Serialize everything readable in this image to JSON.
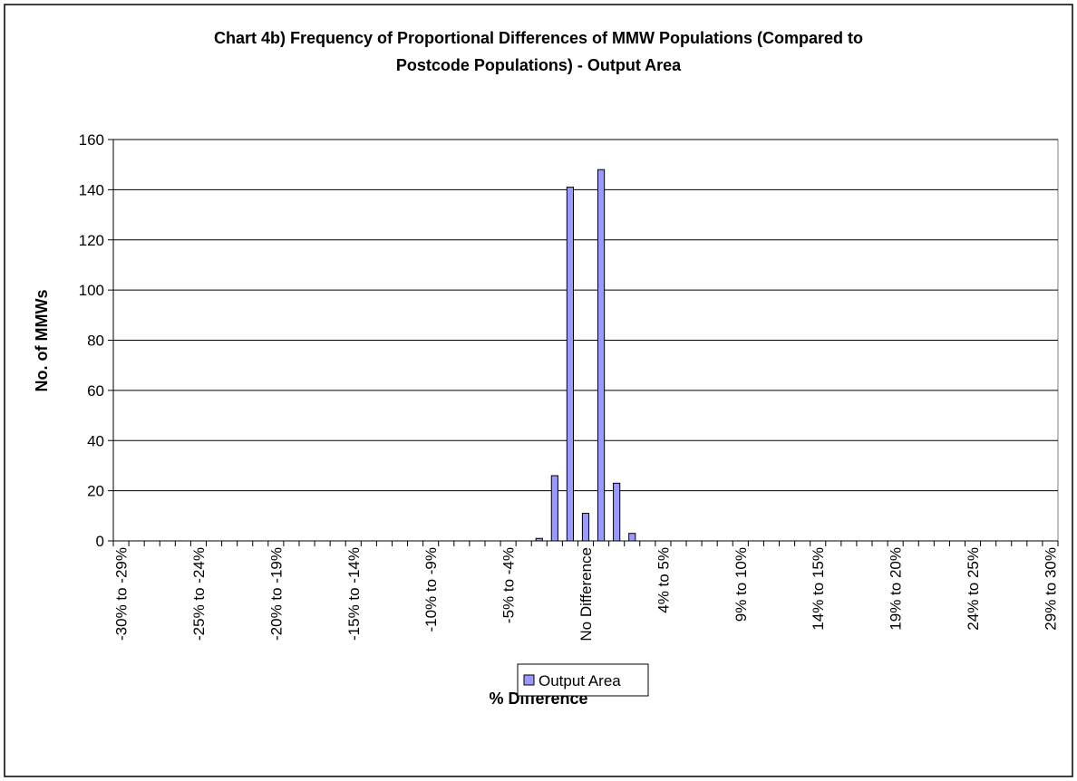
{
  "chart_data": {
    "type": "bar",
    "title": [
      "Chart 4b) Frequency of Proportional Differences of MMW Populations (Compared to",
      "Postcode Populations) - Output Area"
    ],
    "x_label": "% Difference",
    "y_label": "No. of MMWs",
    "categories": [
      "-30% to -29%",
      null,
      null,
      null,
      null,
      "-25% to -24%",
      null,
      null,
      null,
      null,
      "-20% to -19%",
      null,
      null,
      null,
      null,
      "-15% to -14%",
      null,
      null,
      null,
      null,
      "-10% to -9%",
      null,
      null,
      null,
      null,
      "-5% to -4%",
      null,
      null,
      null,
      null,
      "No Difference",
      null,
      null,
      null,
      null,
      "4% to 5%",
      null,
      null,
      null,
      null,
      "9% to 10%",
      null,
      null,
      null,
      null,
      "14% to 15%",
      null,
      null,
      null,
      null,
      "19% to 20%",
      null,
      null,
      null,
      null,
      "24% to 25%",
      null,
      null,
      null,
      null,
      "29% to 30%"
    ],
    "series": [
      {
        "name": "Output Area",
        "color": "#9999ff",
        "values": [
          0,
          0,
          0,
          0,
          0,
          0,
          0,
          0,
          0,
          0,
          0,
          0,
          0,
          0,
          0,
          0,
          0,
          0,
          0,
          0,
          0,
          0,
          0,
          0,
          0,
          0,
          0,
          1,
          26,
          141,
          11,
          148,
          23,
          3,
          0,
          0,
          0,
          0,
          0,
          0,
          0,
          0,
          0,
          0,
          0,
          0,
          0,
          0,
          0,
          0,
          0,
          0,
          0,
          0,
          0,
          0,
          0,
          0,
          0,
          0,
          0
        ]
      }
    ],
    "ylim": [
      0,
      160
    ],
    "yticks": [
      0,
      20,
      40,
      60,
      80,
      100,
      120,
      140,
      160
    ],
    "grid": true,
    "legend": "bottom"
  }
}
